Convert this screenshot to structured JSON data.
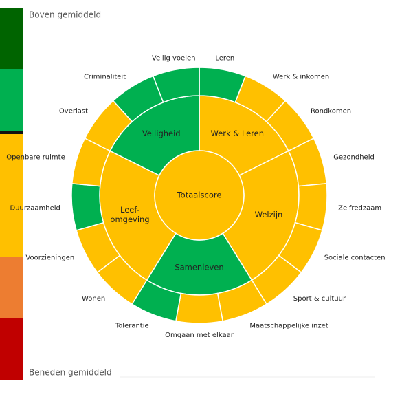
{
  "legend": {
    "top": "Boven gemiddeld",
    "bottom": "Beneden gemiddeld",
    "colors": [
      "#006400",
      "#00b050",
      "#ffc000",
      "#ffc000",
      "#ed7d31",
      "#c00000"
    ]
  },
  "center": {
    "label": "Totaalscore",
    "color": "#ffc000"
  },
  "groups": [
    {
      "label": [
        "Werk & Leren"
      ],
      "color": "#ffc000",
      "items": [
        {
          "label": "Leren",
          "color": "#00b050"
        },
        {
          "label": "Werk & inkomen",
          "color": "#ffc000"
        },
        {
          "label": "Rondkomen",
          "color": "#ffc000"
        }
      ]
    },
    {
      "label": [
        "Welzijn"
      ],
      "color": "#ffc000",
      "items": [
        {
          "label": "Gezondheid",
          "color": "#ffc000"
        },
        {
          "label": "Zelfredzaam",
          "color": "#ffc000"
        },
        {
          "label": "Sociale contacten",
          "color": "#ffc000"
        },
        {
          "label": "Sport & cultuur",
          "color": "#ffc000"
        }
      ]
    },
    {
      "label": [
        "Samenleven"
      ],
      "color": "#00b050",
      "items": [
        {
          "label": "Maatschappelijke inzet",
          "color": "#ffc000"
        },
        {
          "label": "Omgaan met elkaar",
          "color": "#ffc000"
        },
        {
          "label": "Tolerantie",
          "color": "#00b050"
        }
      ]
    },
    {
      "label": [
        "Leef-",
        "omgeving"
      ],
      "color": "#ffc000",
      "items": [
        {
          "label": "Wonen",
          "color": "#ffc000"
        },
        {
          "label": "Voorzieningen",
          "color": "#ffc000"
        },
        {
          "label": "Duurzaamheid",
          "color": "#00b050"
        },
        {
          "label": "Openbare ruimte",
          "color": "#ffc000"
        }
      ]
    },
    {
      "label": [
        "Veiligheid"
      ],
      "color": "#00b050",
      "items": [
        {
          "label": "Overlast",
          "color": "#ffc000"
        },
        {
          "label": "Criminaliteit",
          "color": "#00b050"
        },
        {
          "label": "Veilig voelen",
          "color": "#00b050"
        }
      ]
    }
  ]
}
